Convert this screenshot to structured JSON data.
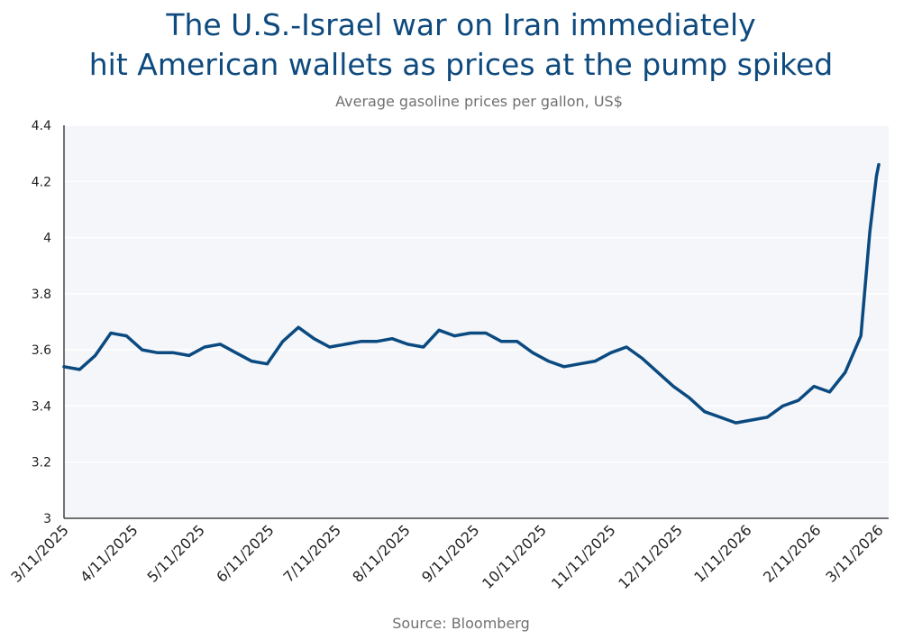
{
  "chart_data": {
    "type": "line",
    "title": "The U.S.-Israel war on Iran immediately hit American wallets as prices at the pump spiked",
    "title_lines": [
      "The U.S.-Israel war on Iran immediately",
      "hit American wallets as prices at the pump spiked"
    ],
    "subtitle": "Average gasoline prices per gallon, US$",
    "source": "Source: Bloomberg",
    "xlabel": "",
    "ylabel": "",
    "ylim": [
      3,
      4.4
    ],
    "yticks": [
      "3",
      "3.2",
      "3.4",
      "3.6",
      "3.8",
      "4",
      "4.2",
      "4.4"
    ],
    "xlim": [
      "2025-03-11",
      "2026-03-11"
    ],
    "xticks": [
      "3/11/2025",
      "4/11/2025",
      "5/11/2025",
      "6/11/2025",
      "7/11/2025",
      "8/11/2025",
      "9/11/2025",
      "10/11/2025",
      "11/11/2025",
      "12/11/2025",
      "1/11/2026",
      "2/11/2026",
      "3/11/2026"
    ],
    "grid": true,
    "colors": {
      "line": "#0a4a80",
      "plot_bg": "#f4f6f9",
      "title": "#0e4a7e"
    },
    "x": [
      "2025-03-11",
      "2025-03-18",
      "2025-03-25",
      "2025-04-01",
      "2025-04-08",
      "2025-04-15",
      "2025-04-22",
      "2025-04-29",
      "2025-05-06",
      "2025-05-13",
      "2025-05-20",
      "2025-05-27",
      "2025-06-03",
      "2025-06-10",
      "2025-06-17",
      "2025-06-24",
      "2025-07-01",
      "2025-07-08",
      "2025-07-15",
      "2025-07-22",
      "2025-07-29",
      "2025-08-05",
      "2025-08-12",
      "2025-08-19",
      "2025-08-26",
      "2025-09-02",
      "2025-09-09",
      "2025-09-16",
      "2025-09-23",
      "2025-09-30",
      "2025-10-07",
      "2025-10-14",
      "2025-10-21",
      "2025-10-28",
      "2025-11-04",
      "2025-11-11",
      "2025-11-18",
      "2025-11-25",
      "2025-12-02",
      "2025-12-09",
      "2025-12-16",
      "2025-12-23",
      "2025-12-30",
      "2026-01-06",
      "2026-01-13",
      "2026-01-20",
      "2026-01-27",
      "2026-02-03",
      "2026-02-10",
      "2026-02-17",
      "2026-02-24",
      "2026-03-03",
      "2026-03-07",
      "2026-03-10",
      "2026-03-11"
    ],
    "values": [
      3.54,
      3.53,
      3.58,
      3.66,
      3.65,
      3.6,
      3.59,
      3.59,
      3.58,
      3.61,
      3.62,
      3.59,
      3.56,
      3.55,
      3.63,
      3.68,
      3.64,
      3.61,
      3.62,
      3.63,
      3.63,
      3.64,
      3.62,
      3.61,
      3.67,
      3.65,
      3.66,
      3.66,
      3.63,
      3.63,
      3.59,
      3.56,
      3.54,
      3.55,
      3.56,
      3.59,
      3.61,
      3.57,
      3.52,
      3.47,
      3.43,
      3.38,
      3.36,
      3.34,
      3.35,
      3.36,
      3.4,
      3.42,
      3.47,
      3.45,
      3.52,
      3.65,
      4.02,
      4.22,
      4.26
    ]
  }
}
